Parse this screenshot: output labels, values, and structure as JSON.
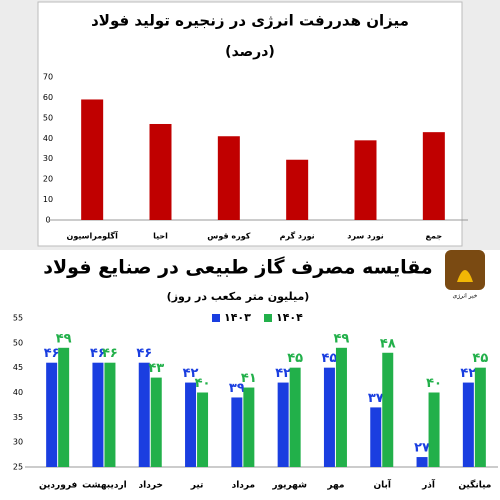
{
  "chart_data": [
    {
      "type": "bar",
      "title": "میزان هدررفت انرژی در زنجیره تولید فولاد",
      "subtitle": "(درصد)",
      "categories": [
        "آگلومراسیون",
        "احیا",
        "کوره قوس",
        "نورد گرم",
        "نورد سرد",
        "جمع"
      ],
      "values": [
        59,
        47,
        41,
        29.5,
        39,
        43
      ],
      "color": "#c00000",
      "ylim": [
        0,
        70
      ],
      "yticks": [
        0,
        10,
        20,
        30,
        40,
        50,
        60,
        70
      ],
      "grid": false
    },
    {
      "type": "bar",
      "title": "مقایسه مصرف گاز طبیعی در صنایع فولاد",
      "subtitle": "(میلیون متر مکعب در روز)",
      "categories": [
        "فروردین",
        "اردیبهشت",
        "خرداد",
        "تیر",
        "مرداد",
        "شهریور",
        "مهر",
        "آبان",
        "آذر",
        "میانگین"
      ],
      "series": [
        {
          "name": "۱۴۰۳",
          "color": "#1a3ee0",
          "values": [
            46,
            46,
            46,
            42,
            39,
            42,
            45,
            37,
            27,
            42
          ],
          "value_labels": [
            "۴۶",
            "۴۶",
            "۴۶",
            "۴۲",
            "۳۹",
            "۴۲",
            "۴۵",
            "۳۷",
            "۲۷",
            "۴۲"
          ]
        },
        {
          "name": "۱۴۰۴",
          "color": "#22b04a",
          "values": [
            49,
            46,
            43,
            40,
            41,
            45,
            49,
            48,
            40,
            45
          ],
          "value_labels": [
            "۴۹",
            "۴۶",
            "۴۳",
            "۴۰",
            "۴۱",
            "۴۵",
            "۴۹",
            "۴۸",
            "۴۰",
            "۴۵"
          ]
        }
      ],
      "ylim": [
        25,
        55
      ],
      "yticks": [
        25,
        30,
        35,
        40,
        45,
        50,
        55
      ],
      "grid": false,
      "legend": "top",
      "logo_text": "خبر انرژی"
    }
  ]
}
